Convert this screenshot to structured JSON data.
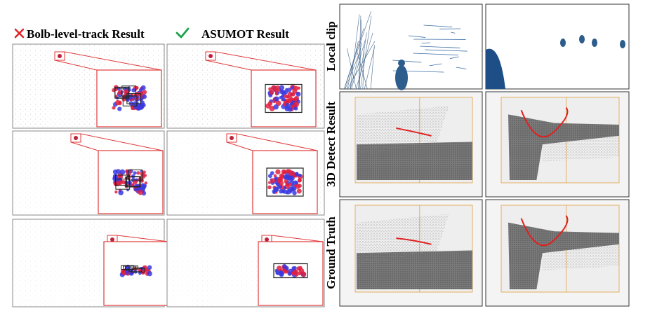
{
  "header": {
    "fail_label": "Bolb-level-track Result",
    "success_label": "ASUMOT Result"
  },
  "row_labels": [
    "Local clip",
    "3D Detect Result",
    "Ground Truth"
  ]
}
